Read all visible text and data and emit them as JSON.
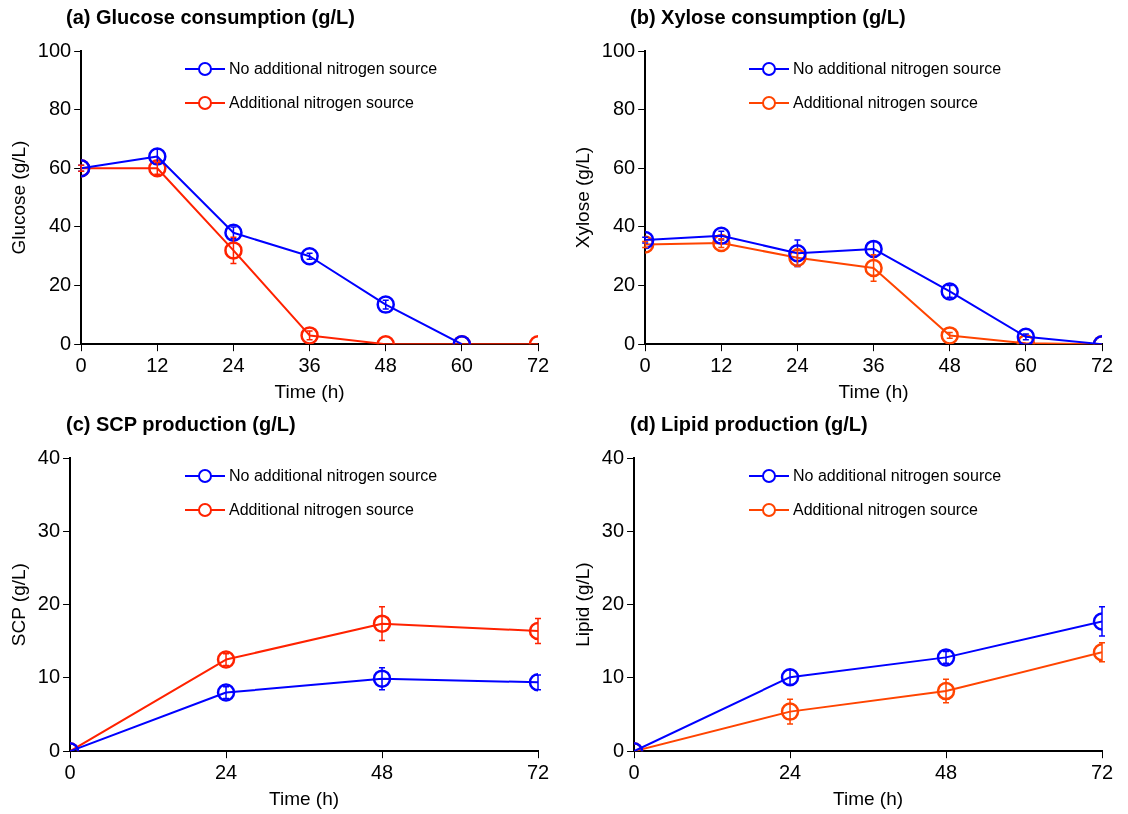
{
  "chart_data": [
    {
      "type": "line",
      "title": "(a) Glucose consumption (g/L)",
      "xlabel": "Time (h)",
      "ylabel": "Glucose (g/L)",
      "x": [
        0,
        12,
        24,
        36,
        48,
        60,
        72
      ],
      "xlim": [
        0,
        72
      ],
      "xticks": [
        0,
        12,
        24,
        36,
        48,
        60,
        72
      ],
      "ylim": [
        0,
        100
      ],
      "yticks": [
        0,
        20,
        40,
        60,
        80,
        100
      ],
      "legend": "top",
      "marker": "circle",
      "grid": false,
      "series": [
        {
          "name": "No additional nitrogen source",
          "color": "#0000ff",
          "values": [
            60,
            64,
            38,
            30,
            13.5,
            0,
            null
          ],
          "errors": [
            1,
            2.5,
            2,
            1,
            1.5,
            null,
            null
          ]
        },
        {
          "name": "Additional nitrogen source",
          "color": "#ff2200",
          "values": [
            60,
            60,
            32,
            3,
            0,
            0,
            0
          ],
          "errors": [
            1,
            2,
            4.5,
            1.5,
            null,
            null,
            null
          ]
        }
      ]
    },
    {
      "type": "line",
      "title": "(b) Xylose consumption (g/L)",
      "xlabel": "Time (h)",
      "ylabel": "Xylose (g/L)",
      "x": [
        0,
        12,
        24,
        36,
        48,
        60,
        72
      ],
      "xlim": [
        0,
        72
      ],
      "xticks": [
        0,
        12,
        24,
        36,
        48,
        60,
        72
      ],
      "ylim": [
        0,
        100
      ],
      "yticks": [
        0,
        20,
        40,
        60,
        80,
        100
      ],
      "legend": "top",
      "marker": "circle",
      "grid": false,
      "series": [
        {
          "name": "No additional nitrogen source",
          "color": "#0000ff",
          "values": [
            35.5,
            37,
            31,
            32.5,
            18,
            2.5,
            0
          ],
          "errors": [
            1,
            1.5,
            4.5,
            2.5,
            2,
            1,
            null
          ]
        },
        {
          "name": "Additional nitrogen source",
          "color": "#ff4400",
          "values": [
            34,
            34.5,
            29.5,
            26,
            3,
            0.3,
            0
          ],
          "errors": [
            1,
            1.5,
            3,
            4.5,
            1,
            null,
            null
          ]
        }
      ]
    },
    {
      "type": "line",
      "title": "(c) SCP production (g/L)",
      "xlabel": "Time (h)",
      "ylabel": "SCP (g/L)",
      "x": [
        0,
        24,
        48,
        72
      ],
      "xlim": [
        0,
        72
      ],
      "xticks": [
        0,
        24,
        48,
        72
      ],
      "ylim": [
        0,
        40
      ],
      "yticks": [
        0,
        10,
        20,
        30,
        40
      ],
      "legend": "top",
      "marker": "circle",
      "grid": false,
      "series": [
        {
          "name": "No additional nitrogen source",
          "color": "#0000ff",
          "values": [
            0,
            8,
            9.9,
            9.4
          ],
          "errors": [
            null,
            0.8,
            1.5,
            1
          ]
        },
        {
          "name": "Additional nitrogen source",
          "color": "#ff2200",
          "values": [
            0,
            12.5,
            17.4,
            16.4
          ],
          "errors": [
            null,
            0.8,
            2.3,
            1.7
          ]
        }
      ]
    },
    {
      "type": "line",
      "title": "(d) Lipid production (g/L)",
      "xlabel": "Time (h)",
      "ylabel": "Lipid (g/L)",
      "x": [
        0,
        24,
        48,
        72
      ],
      "xlim": [
        0,
        72
      ],
      "xticks": [
        0,
        24,
        48,
        72
      ],
      "ylim": [
        0,
        40
      ],
      "yticks": [
        0,
        10,
        20,
        30,
        40
      ],
      "legend": "top",
      "marker": "circle",
      "grid": false,
      "series": [
        {
          "name": "No additional nitrogen source",
          "color": "#0000ff",
          "values": [
            0,
            10.1,
            12.8,
            17.7
          ],
          "errors": [
            null,
            1,
            0.8,
            2
          ]
        },
        {
          "name": "Additional nitrogen source",
          "color": "#ff4400",
          "values": [
            0,
            5.4,
            8.2,
            13.5
          ],
          "errors": [
            null,
            1.7,
            1.6,
            1.3
          ]
        }
      ]
    }
  ]
}
